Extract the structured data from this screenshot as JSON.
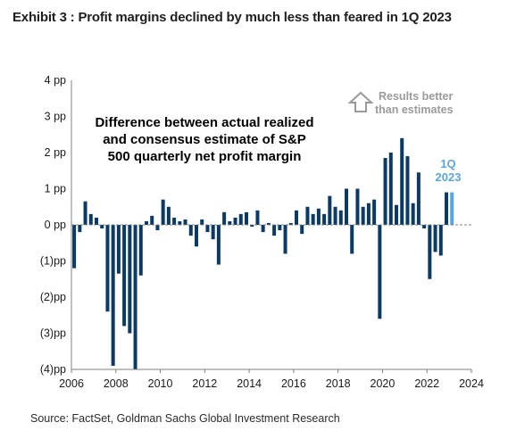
{
  "title": "Exhibit 3 : Profit margins declined by much less than feared in 1Q 2023",
  "source": "Source: FactSet, Goldman Sachs Global Investment Research",
  "chart_data": {
    "type": "bar",
    "ylim": [
      -4,
      4
    ],
    "xlim": [
      2006,
      2024
    ],
    "y_ticks": [
      4,
      3,
      2,
      1,
      0,
      -1,
      -2,
      -3,
      -4
    ],
    "y_tick_labels": [
      "4 pp",
      "3 pp",
      "2 pp",
      "1 pp",
      "0 pp",
      "(1)pp",
      "(2)pp",
      "(3)pp",
      "(4)pp"
    ],
    "x_ticks": [
      2006,
      2008,
      2010,
      2012,
      2014,
      2016,
      2018,
      2020,
      2022,
      2024
    ],
    "x_tick_labels": [
      "2006",
      "2008",
      "2010",
      "2012",
      "2014",
      "2016",
      "2018",
      "2020",
      "2022",
      "2024"
    ],
    "annotation": [
      "Difference between actual realized",
      "and consensus estimate of S&P",
      "500 quarterly net profit margin"
    ],
    "legend_text": [
      "Results  better",
      "than estimates"
    ],
    "highlight_label": [
      "1Q",
      "2023"
    ],
    "colors": {
      "bar": "#0b3a66",
      "highlight": "#5aa5dc",
      "arrow": "#9a9a9a"
    },
    "x": [
      "2006Q1",
      "2006Q2",
      "2006Q3",
      "2006Q4",
      "2007Q1",
      "2007Q2",
      "2007Q3",
      "2007Q4",
      "2008Q1",
      "2008Q2",
      "2008Q3",
      "2008Q4",
      "2009Q1",
      "2009Q2",
      "2009Q3",
      "2009Q4",
      "2010Q1",
      "2010Q2",
      "2010Q3",
      "2010Q4",
      "2011Q1",
      "2011Q2",
      "2011Q3",
      "2011Q4",
      "2012Q1",
      "2012Q2",
      "2012Q3",
      "2012Q4",
      "2013Q1",
      "2013Q2",
      "2013Q3",
      "2013Q4",
      "2014Q1",
      "2014Q2",
      "2014Q3",
      "2014Q4",
      "2015Q1",
      "2015Q2",
      "2015Q3",
      "2015Q4",
      "2016Q1",
      "2016Q2",
      "2016Q3",
      "2016Q4",
      "2017Q1",
      "2017Q2",
      "2017Q3",
      "2017Q4",
      "2018Q1",
      "2018Q2",
      "2018Q3",
      "2018Q4",
      "2019Q1",
      "2019Q2",
      "2019Q3",
      "2019Q4",
      "2020Q1",
      "2020Q2",
      "2020Q3",
      "2020Q4",
      "2021Q1",
      "2021Q2",
      "2021Q3",
      "2021Q4",
      "2022Q1",
      "2022Q2",
      "2022Q3",
      "2022Q4",
      "2023Q1"
    ],
    "values": [
      -1.2,
      -0.2,
      0.65,
      0.3,
      0.2,
      -0.1,
      -2.4,
      -3.9,
      -1.35,
      -2.8,
      -3.0,
      -4.0,
      -1.4,
      0.1,
      0.25,
      -0.15,
      0.7,
      0.5,
      0.2,
      0.1,
      0.15,
      -0.3,
      -0.6,
      0.15,
      -0.2,
      -0.4,
      -1.1,
      0.35,
      0.1,
      0.2,
      0.3,
      0.35,
      -0.05,
      0.4,
      -0.2,
      0.05,
      -0.3,
      -0.15,
      -0.8,
      0.05,
      0.4,
      -0.25,
      0.5,
      0.3,
      0.45,
      0.3,
      0.8,
      0.5,
      0.4,
      1.0,
      -0.8,
      1.0,
      0.5,
      0.6,
      0.7,
      -2.6,
      1.85,
      2.0,
      0.55,
      2.4,
      1.9,
      0.6,
      1.45,
      -0.1,
      -1.5,
      -0.75,
      -0.85,
      0.9,
      0.9
    ],
    "highlight_index": 68
  }
}
